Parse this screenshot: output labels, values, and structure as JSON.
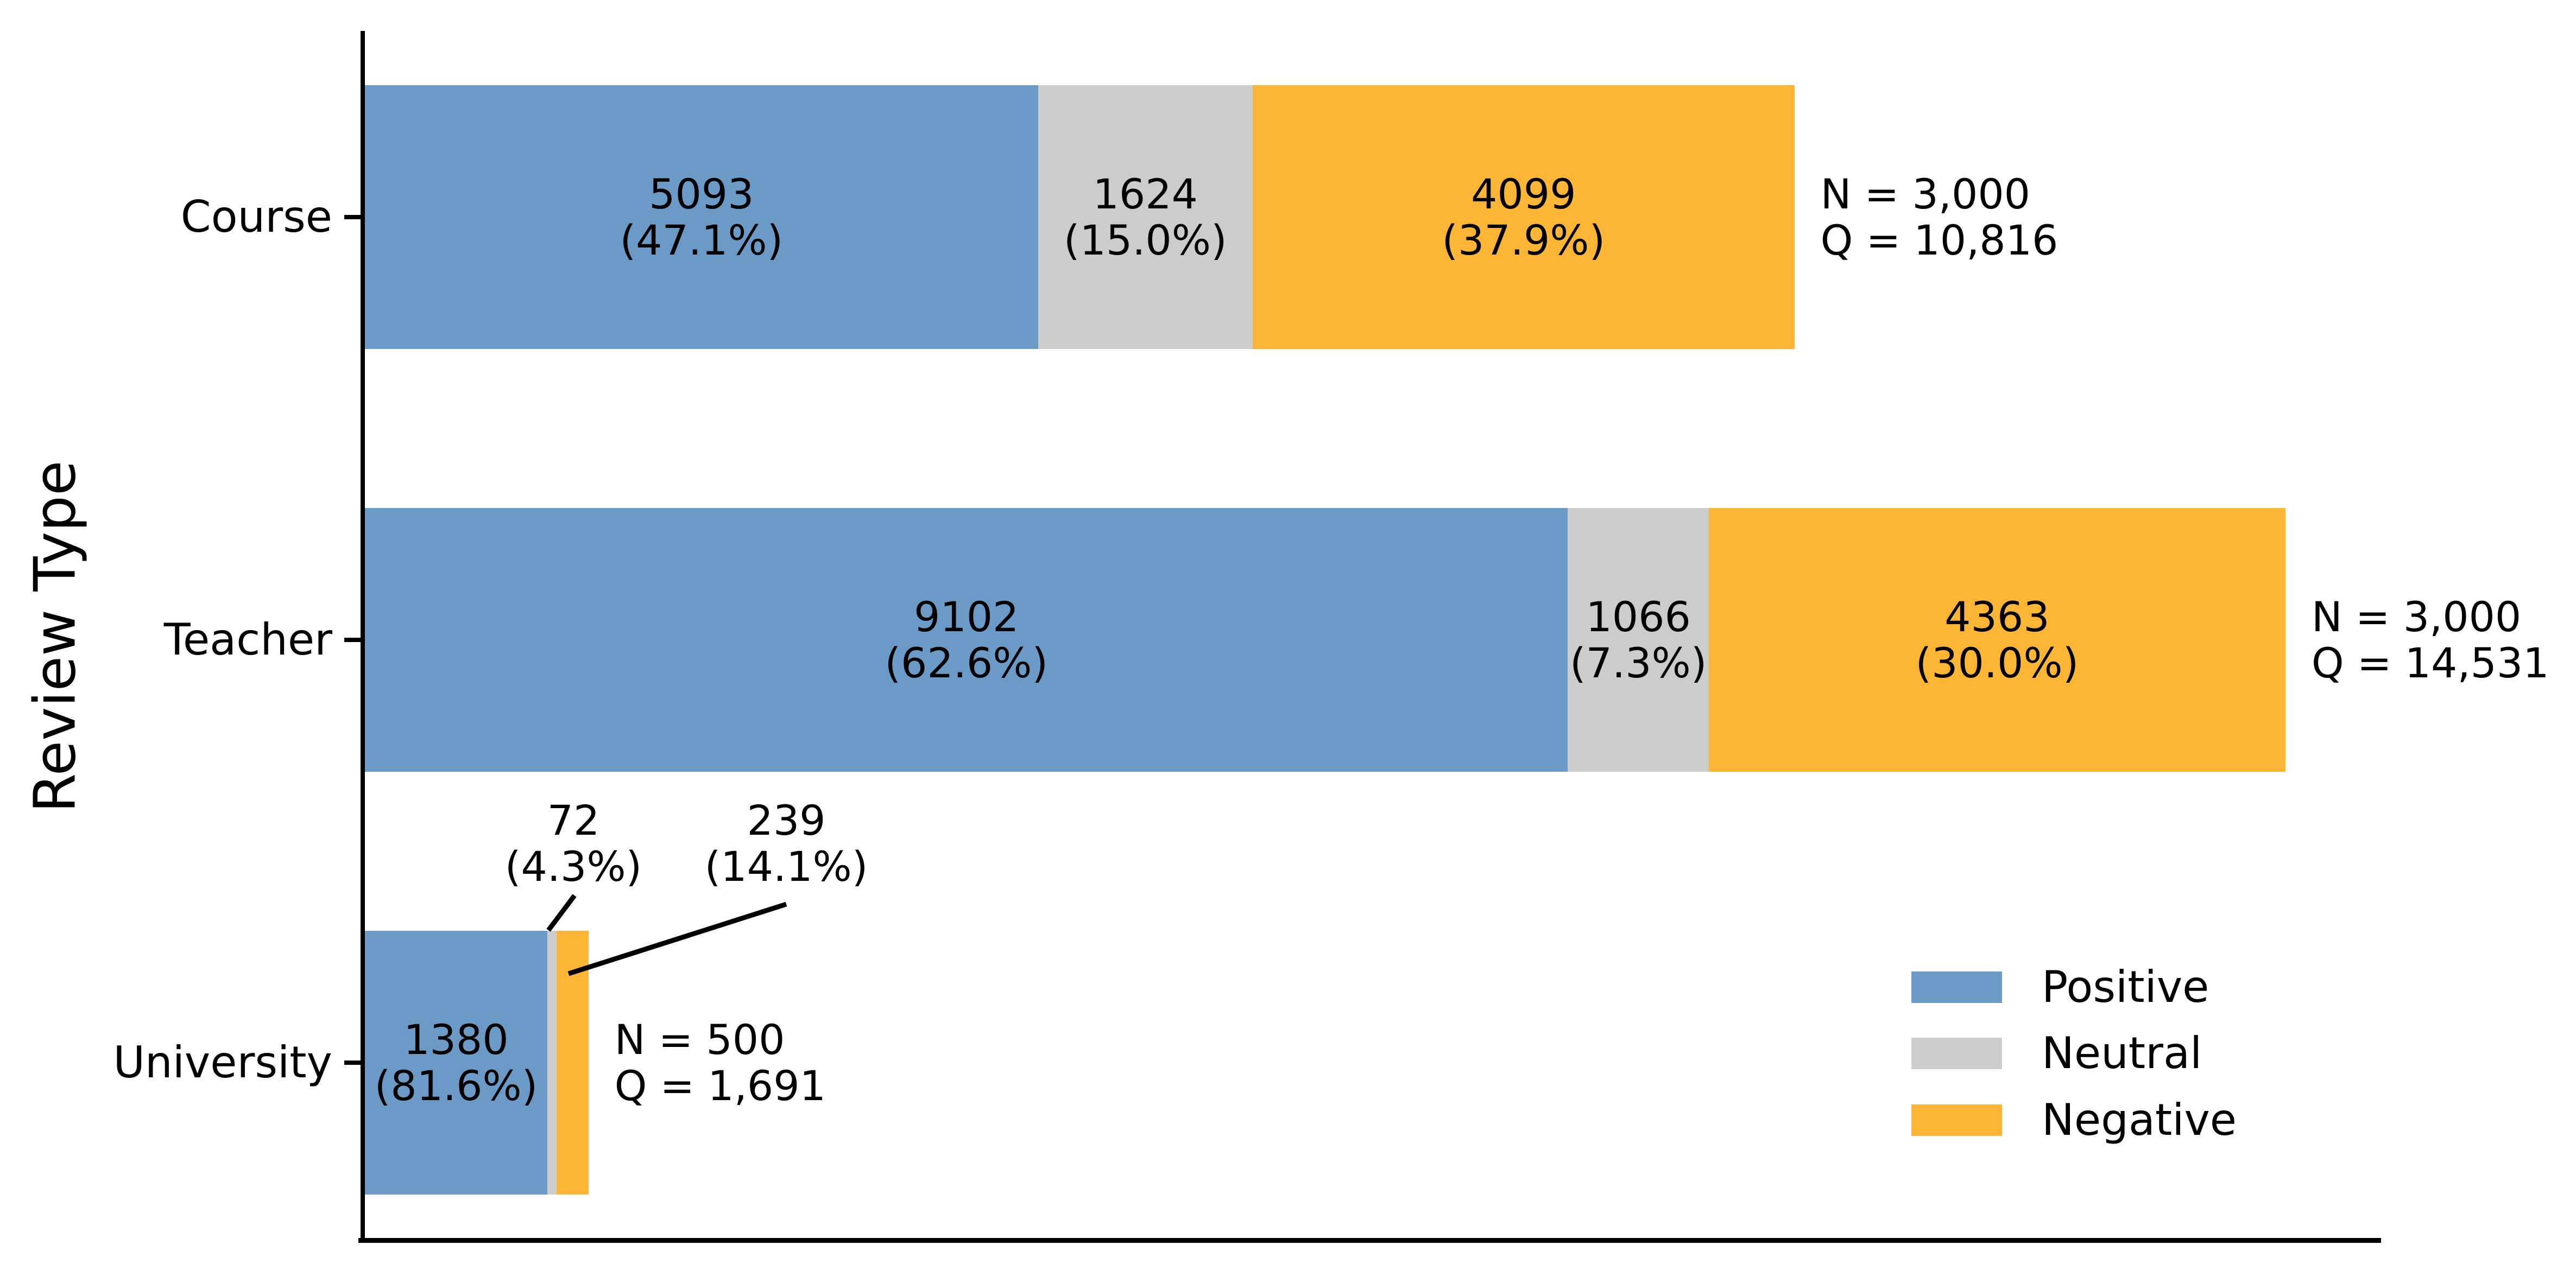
{
  "chart_data": {
    "type": "bar",
    "orientation": "horizontal",
    "stacked": true,
    "title": "",
    "xlabel": "",
    "ylabel": "Review Type",
    "categories": [
      "Course",
      "Teacher",
      "University"
    ],
    "series": [
      {
        "name": "Positive",
        "color": "#6A9AC5",
        "values": [
          5093,
          9102,
          1380
        ],
        "pct": [
          "47.1%",
          "62.6%",
          "81.6%"
        ]
      },
      {
        "name": "Neutral",
        "color": "#CCCCCC",
        "values": [
          1624,
          1066,
          72
        ],
        "pct": [
          "15.0%",
          "7.3%",
          "4.3%"
        ]
      },
      {
        "name": "Negative",
        "color": "#FCB535",
        "values": [
          4099,
          4363,
          239
        ],
        "pct": [
          "37.9%",
          "30.0%",
          "14.1%"
        ]
      }
    ],
    "segment_labels": [
      [
        "5093\n(47.1%)",
        "1624\n(15.0%)",
        "4099\n(37.9%)"
      ],
      [
        "9102\n(62.6%)",
        "1066\n(7.3%)",
        "4363\n(30.0%)"
      ],
      [
        "1380\n(81.6%)",
        "72\n(4.3%)",
        "239\n(14.1%)"
      ]
    ],
    "totals": [
      {
        "category": "Course",
        "label": "N = 3,000\nQ = 10,816"
      },
      {
        "category": "Teacher",
        "label": "N = 3,000\nQ = 14,531"
      },
      {
        "category": "University",
        "label": "N = 500\nQ = 1,691"
      }
    ],
    "outside_labels": [
      {
        "category": "University",
        "series": "Neutral",
        "text": "72\n(4.3%)"
      },
      {
        "category": "University",
        "series": "Negative",
        "text": "239\n(14.1%)"
      }
    ],
    "legend": {
      "position": "lower right",
      "entries": [
        "Positive",
        "Neutral",
        "Negative"
      ]
    },
    "axis_color": "#000000",
    "text_color": "#000000",
    "background": "#FFFFFF",
    "x_axis": {
      "tick_labels_visible": false
    },
    "grid": false
  }
}
